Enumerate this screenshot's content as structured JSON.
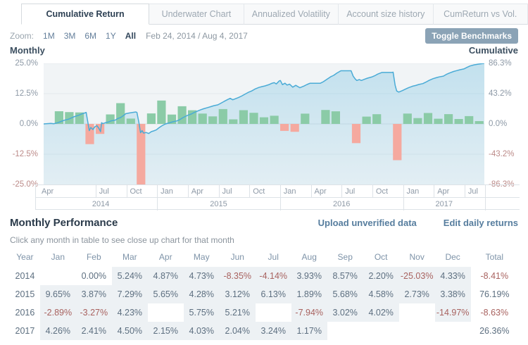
{
  "tabs": [
    {
      "label": "Cumulative Return",
      "active": true
    },
    {
      "label": "Underwater Chart",
      "active": false
    },
    {
      "label": "Annualized Volatility",
      "active": false
    },
    {
      "label": "Account size history",
      "active": false
    },
    {
      "label": "CumReturn vs Vol.",
      "active": false
    }
  ],
  "toolbar": {
    "zoom_label": "Zoom:",
    "ranges": [
      "1M",
      "3M",
      "6M",
      "1Y",
      "All"
    ],
    "active_range": "All",
    "date_range": "Feb 24, 2014 / Aug 4, 2017",
    "toggle_benchmarks_label": "Toggle Benchmarks"
  },
  "chart": {
    "left_axis_title": "Monthly",
    "right_axis_title": "Cumulative",
    "left_ticks": [
      "25.0%",
      "12.5%",
      "0.0%",
      "-12.5%",
      "-25.0%"
    ],
    "right_ticks": [
      "86.3%",
      "43.2%",
      "0.0%",
      "-43.2%",
      "-86.3%"
    ],
    "colors": {
      "positive_bar": "#8bcba7",
      "negative_bar": "#f5a99f",
      "line": "#4aabd6",
      "area": "#76c1e1",
      "plot_bg": "#f1f4f6",
      "grid": "#e3e9ec",
      "zero_line": "#d9dfe3"
    }
  },
  "chart_data": {
    "type": "combo bar + area-line",
    "x_start": "Feb 2014",
    "x_end": "Aug 2017",
    "months_count": 43,
    "left_ylim": [
      -25,
      25
    ],
    "right_ylim": [
      -86.3,
      86.3
    ],
    "bar_series": {
      "name": "Monthly return %",
      "values": [
        0.0,
        5.24,
        4.87,
        4.73,
        -8.35,
        -4.14,
        3.93,
        8.57,
        2.2,
        -25.03,
        4.33,
        9.65,
        3.87,
        7.29,
        5.65,
        4.28,
        3.12,
        6.13,
        1.89,
        5.68,
        4.58,
        2.73,
        3.38,
        -2.89,
        -3.27,
        4.23,
        null,
        5.75,
        5.21,
        null,
        -7.94,
        3.02,
        4.02,
        null,
        -14.97,
        4.26,
        2.41,
        4.5,
        2.15,
        4.03,
        2.04,
        3.24,
        1.17
      ]
    },
    "line_series": {
      "name": "Cumulative return %",
      "points": [
        [
          0,
          0
        ],
        [
          0.7,
          0.8
        ],
        [
          1,
          0.3
        ],
        [
          1.4,
          1.8
        ],
        [
          1.7,
          3.5
        ],
        [
          2,
          5.2
        ],
        [
          2.4,
          6.6
        ],
        [
          2.7,
          8.4
        ],
        [
          3,
          10.4
        ],
        [
          3.4,
          12.2
        ],
        [
          3.7,
          14.1
        ],
        [
          4,
          15.6
        ],
        [
          4.15,
          16.4
        ],
        [
          4.3,
          3.5
        ],
        [
          4.45,
          -9.5
        ],
        [
          4.6,
          -5
        ],
        [
          4.8,
          -8
        ],
        [
          5,
          -4
        ],
        [
          5.2,
          -2.5
        ],
        [
          5.4,
          -6.5
        ],
        [
          5.55,
          -11
        ],
        [
          5.65,
          1.8
        ],
        [
          5.78,
          0.4
        ],
        [
          6,
          1.6
        ],
        [
          6.3,
          2.6
        ],
        [
          6.6,
          4.4
        ],
        [
          7,
          5.5
        ],
        [
          7.2,
          7.4
        ],
        [
          7.5,
          9
        ],
        [
          7.8,
          12
        ],
        [
          8,
          14.6
        ],
        [
          8.3,
          15.5
        ],
        [
          8.6,
          16.2
        ],
        [
          9,
          17.1
        ],
        [
          9.1,
          16.4
        ],
        [
          9.3,
          1.5
        ],
        [
          9.45,
          -12.5
        ],
        [
          9.6,
          -9.5
        ],
        [
          9.75,
          -13
        ],
        [
          10,
          -12.2
        ],
        [
          10.25,
          -13.6
        ],
        [
          10.5,
          -11
        ],
        [
          10.8,
          -9.6
        ],
        [
          11,
          -8.4
        ],
        [
          11.2,
          -6
        ],
        [
          11.5,
          -3
        ],
        [
          11.8,
          -0.6
        ],
        [
          12,
          0.5
        ],
        [
          12.3,
          1.6
        ],
        [
          12.6,
          3
        ],
        [
          13,
          4.3
        ],
        [
          13.3,
          6.2
        ],
        [
          13.6,
          9
        ],
        [
          14,
          11.9
        ],
        [
          14.4,
          14
        ],
        [
          14.7,
          16.4
        ],
        [
          15,
          18.3
        ],
        [
          15.3,
          20
        ],
        [
          15.6,
          21.6
        ],
        [
          16,
          23.3
        ],
        [
          16.3,
          24.6
        ],
        [
          16.6,
          26
        ],
        [
          17,
          27.2
        ],
        [
          17.3,
          29.6
        ],
        [
          17.6,
          32
        ],
        [
          18,
          35
        ],
        [
          18.2,
          36.4
        ],
        [
          18.45,
          34.4
        ],
        [
          18.7,
          35.8
        ],
        [
          19,
          37.5
        ],
        [
          19.3,
          39.6
        ],
        [
          19.6,
          42
        ],
        [
          20,
          45.3
        ],
        [
          20.3,
          47
        ],
        [
          20.6,
          49.6
        ],
        [
          21,
          52
        ],
        [
          21.3,
          53.2
        ],
        [
          21.6,
          54.2
        ],
        [
          22,
          56.1
        ],
        [
          22.25,
          57.8
        ],
        [
          22.5,
          58.8
        ],
        [
          22.7,
          57
        ],
        [
          23,
          61.4
        ],
        [
          23.1,
          61.8
        ],
        [
          23.3,
          56
        ],
        [
          23.55,
          58
        ],
        [
          23.75,
          55.4
        ],
        [
          24,
          56.7
        ],
        [
          24.3,
          52.4
        ],
        [
          24.6,
          55
        ],
        [
          25,
          51.6
        ],
        [
          25.4,
          54
        ],
        [
          25.7,
          56.2
        ],
        [
          26,
          58
        ],
        [
          27,
          58
        ],
        [
          27.3,
          60.2
        ],
        [
          27.6,
          63.2
        ],
        [
          28,
          67.1
        ],
        [
          28.3,
          69.2
        ],
        [
          28.6,
          72.4
        ],
        [
          29,
          75.8
        ],
        [
          30,
          75.8
        ],
        [
          30.2,
          68
        ],
        [
          30.4,
          64
        ],
        [
          30.55,
          61.9
        ],
        [
          30.8,
          63.2
        ],
        [
          31,
          61.9
        ],
        [
          31.3,
          63.6
        ],
        [
          31.6,
          65.2
        ],
        [
          32,
          66.8
        ],
        [
          32.3,
          68.6
        ],
        [
          32.6,
          71
        ],
        [
          33,
          73.4
        ],
        [
          34,
          73.4
        ],
        [
          34.1,
          73.8
        ],
        [
          34.3,
          55
        ],
        [
          34.45,
          47
        ],
        [
          34.65,
          45.4
        ],
        [
          34.85,
          46.6
        ],
        [
          35,
          47.5
        ],
        [
          35.3,
          49.6
        ],
        [
          35.6,
          51.6
        ],
        [
          36,
          53.8
        ],
        [
          36.3,
          54.8
        ],
        [
          36.6,
          56.2
        ],
        [
          37,
          57.5
        ],
        [
          37.3,
          59.6
        ],
        [
          37.6,
          62
        ],
        [
          38,
          64.5
        ],
        [
          38.3,
          65.8
        ],
        [
          38.6,
          67
        ],
        [
          39,
          68.1
        ],
        [
          39.3,
          70.6
        ],
        [
          39.6,
          72.6
        ],
        [
          40,
          74.8
        ],
        [
          40.3,
          76
        ],
        [
          40.6,
          77.2
        ],
        [
          41,
          78.4
        ],
        [
          41.3,
          80.6
        ],
        [
          41.6,
          82.6
        ],
        [
          42,
          84.2
        ],
        [
          42.35,
          85
        ],
        [
          42.7,
          85.8
        ],
        [
          43,
          86.3
        ]
      ]
    },
    "quarter_ticks": [
      {
        "i": 2,
        "label": "Apr",
        "edge": true
      },
      {
        "i": 5,
        "label": "Jul"
      },
      {
        "i": 8,
        "label": "Oct"
      },
      {
        "i": 11,
        "label": "Jan"
      },
      {
        "i": 14,
        "label": "Apr"
      },
      {
        "i": 17,
        "label": "Jul"
      },
      {
        "i": 20,
        "label": "Oct"
      },
      {
        "i": 23,
        "label": "Jan"
      },
      {
        "i": 26,
        "label": "Apr"
      },
      {
        "i": 29,
        "label": "Jul"
      },
      {
        "i": 32,
        "label": "Oct"
      },
      {
        "i": 35,
        "label": "Jan"
      },
      {
        "i": 38,
        "label": "Apr"
      },
      {
        "i": 41,
        "label": "Jul"
      }
    ],
    "year_cells": [
      {
        "label": "2014",
        "from": 0,
        "to": 11
      },
      {
        "label": "2015",
        "from": 11,
        "to": 23
      },
      {
        "label": "2016",
        "from": 23,
        "to": 35
      },
      {
        "label": "2017",
        "from": 35,
        "to": 43
      }
    ]
  },
  "performance": {
    "title": "Monthly Performance",
    "upload_link": "Upload unverified data",
    "edit_link": "Edit daily returns",
    "hint": "Click any month in table to see close up chart for that month",
    "columns": [
      "Year",
      "Jan",
      "Feb",
      "Mar",
      "Apr",
      "May",
      "Jun",
      "Jul",
      "Aug",
      "Sep",
      "Oct",
      "Nov",
      "Dec",
      "Total"
    ],
    "rows": [
      {
        "year": "2014",
        "cells": [
          {
            "t": ""
          },
          {
            "t": "0.00%"
          },
          {
            "t": "5.24%",
            "s": 1
          },
          {
            "t": "4.87%",
            "s": 1
          },
          {
            "t": "4.73%",
            "s": 1
          },
          {
            "t": "-8.35%",
            "s": 1
          },
          {
            "t": "-4.14%",
            "s": 1
          },
          {
            "t": "3.93%",
            "s": 1
          },
          {
            "t": "8.57%",
            "s": 1
          },
          {
            "t": "2.20%",
            "s": 1
          },
          {
            "t": "-25.03%",
            "s": 1
          },
          {
            "t": "4.33%",
            "s": 1
          }
        ],
        "total": "-8.41%"
      },
      {
        "year": "2015",
        "cells": [
          {
            "t": "9.65%",
            "s": 1
          },
          {
            "t": "3.87%",
            "s": 1
          },
          {
            "t": "7.29%",
            "s": 1
          },
          {
            "t": "5.65%",
            "s": 1
          },
          {
            "t": "4.28%",
            "s": 1
          },
          {
            "t": "3.12%",
            "s": 1
          },
          {
            "t": "6.13%",
            "s": 1
          },
          {
            "t": "1.89%",
            "s": 1
          },
          {
            "t": "5.68%",
            "s": 1
          },
          {
            "t": "4.58%",
            "s": 1
          },
          {
            "t": "2.73%",
            "s": 1
          },
          {
            "t": "3.38%",
            "s": 1
          }
        ],
        "total": "76.19%"
      },
      {
        "year": "2016",
        "cells": [
          {
            "t": "-2.89%",
            "s": 1
          },
          {
            "t": "-3.27%",
            "s": 1
          },
          {
            "t": "4.23%",
            "s": 1
          },
          {
            "t": ""
          },
          {
            "t": "5.75%",
            "s": 1
          },
          {
            "t": "5.21%",
            "s": 1
          },
          {
            "t": ""
          },
          {
            "t": "-7.94%",
            "s": 1
          },
          {
            "t": "3.02%",
            "s": 1
          },
          {
            "t": "4.02%",
            "s": 1
          },
          {
            "t": ""
          },
          {
            "t": "-14.97%",
            "s": 1
          }
        ],
        "total": "-8.63%"
      },
      {
        "year": "2017",
        "cells": [
          {
            "t": "4.26%",
            "s": 1
          },
          {
            "t": "2.41%",
            "s": 1
          },
          {
            "t": "4.50%",
            "s": 1
          },
          {
            "t": "2.15%",
            "s": 1
          },
          {
            "t": "4.03%",
            "s": 1
          },
          {
            "t": "2.04%",
            "s": 1
          },
          {
            "t": "3.24%",
            "s": 1
          },
          {
            "t": "1.17%",
            "s": 1
          },
          {
            "t": ""
          },
          {
            "t": ""
          },
          {
            "t": ""
          },
          {
            "t": ""
          }
        ],
        "total": "26.36%"
      }
    ]
  }
}
